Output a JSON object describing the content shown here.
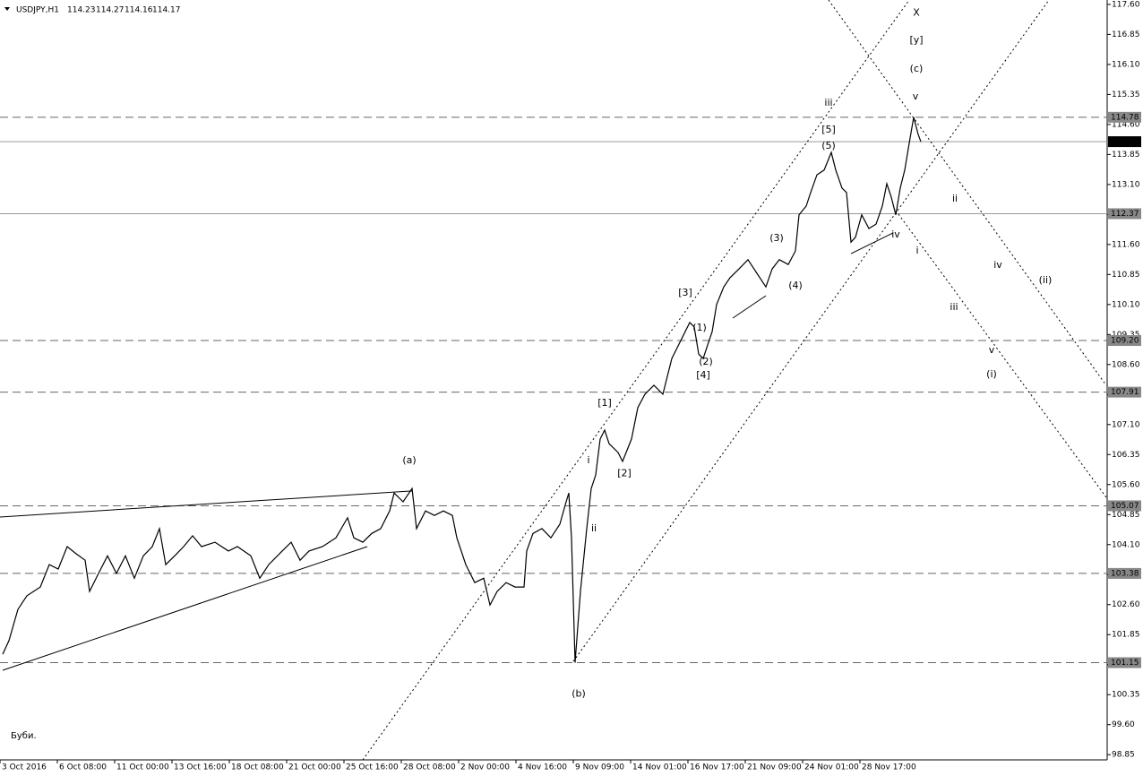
{
  "chart_data": {
    "type": "line",
    "title": "USDJPY,H1",
    "ohlc": [
      114.23,
      114.27,
      114.16,
      114.17
    ],
    "caption": "Буби.",
    "color": "#000000",
    "xlim": [
      0,
      1235
    ],
    "ylim": [
      98.72,
      117.71
    ],
    "xticks": [
      {
        "value": 0,
        "label": "3 Oct 2016"
      },
      {
        "value": 64,
        "label": "6 Oct 08:00"
      },
      {
        "value": 128,
        "label": "11 Oct 00:00"
      },
      {
        "value": 192,
        "label": "13 Oct 16:00"
      },
      {
        "value": 256,
        "label": "18 Oct 08:00"
      },
      {
        "value": 320,
        "label": "21 Oct 00:00"
      },
      {
        "value": 384,
        "label": "25 Oct 16:00"
      },
      {
        "value": 448,
        "label": "28 Oct 08:00"
      },
      {
        "value": 512,
        "label": "2 Nov 00:00"
      },
      {
        "value": 576,
        "label": "4 Nov 16:00"
      },
      {
        "value": 640,
        "label": "9 Nov 09:00"
      },
      {
        "value": 704,
        "label": "14 Nov 01:00"
      },
      {
        "value": 768,
        "label": "16 Nov 17:00"
      },
      {
        "value": 832,
        "label": "21 Nov 09:00"
      },
      {
        "value": 896,
        "label": "24 Nov 01:00"
      },
      {
        "value": 960,
        "label": "28 Nov 17:00"
      }
    ],
    "yticks": [
      {
        "value": 117.6,
        "label": "117.60"
      },
      116.85,
      {
        "value": 116.1,
        "label": "116.10"
      },
      115.35,
      {
        "value": 114.6,
        "label": "114.60"
      },
      113.85,
      {
        "value": 113.1,
        "label": "113.10"
      },
      112.35,
      {
        "value": 111.6,
        "label": "111.60"
      },
      110.85,
      {
        "value": 110.1,
        "label": "110.10"
      },
      109.35,
      {
        "value": 108.6,
        "label": "108.60"
      },
      107.85,
      {
        "value": 107.1,
        "label": "107.10"
      },
      106.35,
      {
        "value": 105.6,
        "label": "105.60"
      },
      104.85,
      {
        "value": 104.1,
        "label": "104.10"
      },
      103.35,
      {
        "value": 102.6,
        "label": "102.60"
      },
      101.85,
      {
        "value": 101.1,
        "label": "101.10"
      },
      100.35,
      {
        "value": 99.6,
        "label": "99.60"
      },
      98.85
    ],
    "x": [
      3,
      10,
      20,
      30,
      45,
      55,
      65,
      75,
      85,
      95,
      100,
      110,
      120,
      130,
      140,
      150,
      160,
      170,
      178,
      185,
      195,
      205,
      215,
      225,
      240,
      255,
      265,
      280,
      290,
      300,
      315,
      325,
      335,
      345,
      360,
      375,
      388,
      395,
      405,
      415,
      425,
      435,
      440,
      450,
      460,
      465,
      475,
      485,
      495,
      505,
      510,
      520,
      530,
      540,
      547,
      555,
      565,
      575,
      585,
      588,
      595,
      605,
      615,
      625,
      632,
      635,
      638,
      642,
      648,
      655,
      660,
      665,
      670,
      675,
      680,
      690,
      695,
      705,
      712,
      720,
      730,
      740,
      750,
      760,
      770,
      775,
      780,
      785,
      790,
      795,
      800,
      808,
      815,
      825,
      835,
      845,
      855,
      862,
      870,
      880,
      888,
      892,
      900,
      905,
      912,
      920,
      928,
      933,
      940,
      945,
      950,
      955,
      962,
      970,
      978,
      985,
      990,
      995,
      1000,
      1005,
      1010,
      1015,
      1020,
      1025,
      1028
    ],
    "values": [
      101.36,
      101.7,
      102.48,
      102.82,
      103.04,
      103.6,
      103.49,
      104.05,
      103.87,
      103.71,
      102.93,
      103.38,
      103.82,
      103.38,
      103.82,
      103.26,
      103.82,
      104.05,
      104.5,
      103.6,
      103.82,
      104.05,
      104.32,
      104.05,
      104.16,
      103.94,
      104.05,
      103.82,
      103.26,
      103.6,
      103.94,
      104.16,
      103.71,
      103.94,
      104.05,
      104.27,
      104.77,
      104.27,
      104.16,
      104.38,
      104.5,
      104.94,
      105.39,
      105.17,
      105.5,
      104.5,
      104.94,
      104.83,
      104.94,
      104.83,
      104.27,
      103.6,
      103.15,
      103.26,
      102.59,
      102.93,
      103.15,
      103.04,
      103.04,
      103.94,
      104.38,
      104.5,
      104.27,
      104.61,
      105.17,
      105.39,
      104.27,
      101.15,
      102.93,
      104.5,
      105.5,
      105.84,
      106.74,
      106.96,
      106.62,
      106.4,
      106.18,
      106.74,
      107.52,
      107.86,
      108.08,
      107.86,
      108.75,
      109.2,
      109.65,
      109.54,
      108.86,
      108.75,
      109.09,
      109.42,
      110.1,
      110.54,
      110.77,
      110.99,
      111.22,
      110.88,
      110.54,
      110.99,
      111.22,
      111.1,
      111.44,
      112.34,
      112.56,
      112.9,
      113.34,
      113.46,
      113.9,
      113.46,
      113.01,
      112.9,
      111.66,
      111.78,
      112.34,
      112.0,
      112.11,
      112.56,
      113.12,
      112.78,
      112.34,
      113.01,
      113.46,
      114.13,
      114.78,
      114.35,
      114.17
    ],
    "levels": [
      {
        "value": 114.78,
        "style": "dashed"
      },
      {
        "value": 114.17,
        "style": "current"
      },
      {
        "value": 112.37,
        "style": "solid"
      },
      {
        "value": 109.2,
        "label": "109.20",
        "style": "dashed"
      },
      {
        "value": 107.91,
        "style": "dashed"
      },
      {
        "value": 105.07,
        "style": "dashed"
      },
      {
        "value": 103.38,
        "style": "dashed"
      },
      {
        "value": 101.15,
        "style": "dashed"
      }
    ],
    "trendlines": [
      {
        "x": [
          405,
          1015
        ],
        "y": [
          98.72,
          117.71
        ],
        "style": "dotted"
      },
      {
        "x": [
          640,
          1171
        ],
        "y": [
          101.18,
          117.71
        ],
        "style": "dotted"
      },
      {
        "x": [
          925,
          1235
        ],
        "y": [
          117.71,
          108.08
        ],
        "style": "dotted"
      },
      {
        "x": [
          1000,
          1235
        ],
        "y": [
          112.45,
          105.28
        ],
        "style": "dotted"
      },
      {
        "x": [
          0,
          460
        ],
        "y": [
          104.79,
          105.44
        ],
        "style": "solid"
      },
      {
        "x": [
          3,
          410
        ],
        "y": [
          100.96,
          104.05
        ],
        "style": "solid"
      },
      {
        "x": [
          950,
          997
        ],
        "y": [
          111.37,
          111.89
        ],
        "style": "solid"
      },
      {
        "x": [
          818,
          855
        ],
        "y": [
          109.76,
          110.32
        ],
        "style": "solid"
      }
    ],
    "annotations": [
      {
        "text": "X",
        "x": 1023,
        "y": 117.38,
        "color": "#0000ff"
      },
      {
        "text": "[y]",
        "x": 1023,
        "y": 116.7,
        "color": "#e00000"
      },
      {
        "text": "(c)",
        "x": 1023,
        "y": 115.99,
        "color": "#008000"
      },
      {
        "text": "v",
        "x": 1022,
        "y": 115.29,
        "color": "#0000cc"
      },
      {
        "text": "iii",
        "x": 925,
        "y": 115.14,
        "color": "#0000cc"
      },
      {
        "text": "[5]",
        "x": 925,
        "y": 114.46,
        "color": "#e00000"
      },
      {
        "text": "(5)",
        "x": 925,
        "y": 114.06,
        "color": "#008000"
      },
      {
        "text": "ii",
        "x": 1066,
        "y": 112.74,
        "color": "#0000cc"
      },
      {
        "text": "iv",
        "x": 1000,
        "y": 111.84,
        "color": "#0000cc"
      },
      {
        "text": "i",
        "x": 1024,
        "y": 111.44,
        "color": "#0000cc"
      },
      {
        "text": "(3)",
        "x": 867,
        "y": 111.75,
        "color": "#008000"
      },
      {
        "text": "(4)",
        "x": 888,
        "y": 110.57,
        "color": "#008000"
      },
      {
        "text": "iv",
        "x": 1114,
        "y": 111.08,
        "color": "#0000cc"
      },
      {
        "text": "(ii)",
        "x": 1167,
        "y": 110.7,
        "color": "#008000"
      },
      {
        "text": "iii",
        "x": 1065,
        "y": 110.03,
        "color": "#0000cc"
      },
      {
        "text": "[3]",
        "x": 765,
        "y": 110.39,
        "color": "#e00000"
      },
      {
        "text": "(1)",
        "x": 781,
        "y": 109.51,
        "color": "#008000"
      },
      {
        "text": "(2)",
        "x": 788,
        "y": 108.66,
        "color": "#008000"
      },
      {
        "text": "[4]",
        "x": 785,
        "y": 108.33,
        "color": "#e00000"
      },
      {
        "text": "v",
        "x": 1107,
        "y": 108.95,
        "color": "#0000cc"
      },
      {
        "text": "(i)",
        "x": 1107,
        "y": 108.35,
        "color": "#008000"
      },
      {
        "text": "[1]",
        "x": 675,
        "y": 107.63,
        "color": "#e00000"
      },
      {
        "text": "(a)",
        "x": 457,
        "y": 106.2,
        "color": "#008000"
      },
      {
        "text": "i",
        "x": 657,
        "y": 106.2,
        "color": "#0000cc"
      },
      {
        "text": "[2]",
        "x": 697,
        "y": 105.88,
        "color": "#e00000"
      },
      {
        "text": "ii",
        "x": 663,
        "y": 104.5,
        "color": "#0000cc"
      },
      {
        "text": "(b)",
        "x": 646,
        "y": 100.37,
        "color": "#008000"
      }
    ]
  }
}
